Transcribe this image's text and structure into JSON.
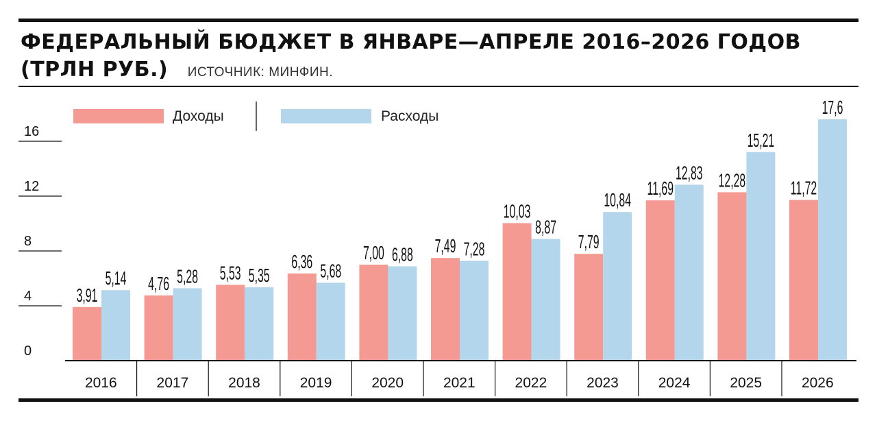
{
  "header": {
    "title": "ФЕДЕРАЛЬНЫЙ БЮДЖЕТ В ЯНВАРЕ—АПРЕЛЕ 2016–2026 ГОДОВ",
    "unit": "(ТРЛН РУБ.)",
    "source": "ИСТОЧНИК: МИНФИН."
  },
  "colors": {
    "income": "#f49a93",
    "expense": "#b3d6ec"
  },
  "chart_data": {
    "type": "bar",
    "categories": [
      "2016",
      "2017",
      "2018",
      "2019",
      "2020",
      "2021",
      "2022",
      "2023",
      "2024",
      "2025",
      "2026"
    ],
    "series": [
      {
        "name": "Доходы",
        "values": [
          3.91,
          4.76,
          5.53,
          6.36,
          7.0,
          7.49,
          10.03,
          7.79,
          11.69,
          12.28,
          11.72
        ],
        "labels": [
          "3,91",
          "4,76",
          "5,53",
          "6,36",
          "7,00",
          "7,49",
          "10,03",
          "7,79",
          "11,69",
          "12,28",
          "11,72"
        ]
      },
      {
        "name": "Расходы",
        "values": [
          5.14,
          5.28,
          5.35,
          5.68,
          6.88,
          7.28,
          8.87,
          10.84,
          12.83,
          15.21,
          17.6
        ],
        "labels": [
          "5,14",
          "5,28",
          "5,35",
          "5,68",
          "6,88",
          "7,28",
          "8,87",
          "10,84",
          "12,83",
          "15,21",
          "17,6"
        ]
      }
    ],
    "y_ticks": [
      0,
      4,
      8,
      12,
      16
    ],
    "y_tick_labels": [
      "0",
      "4",
      "8",
      "12",
      "16"
    ],
    "ylim": [
      0,
      18
    ],
    "legend_position": "top-left",
    "grid": false
  }
}
